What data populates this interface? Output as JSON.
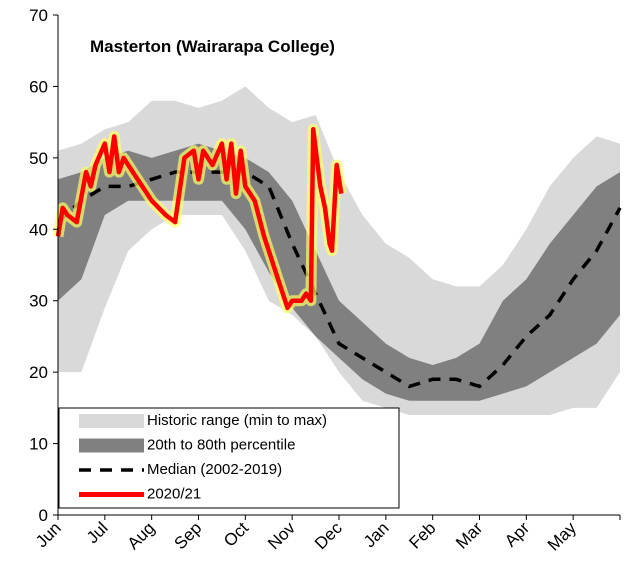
{
  "chart_data": {
    "type": "line",
    "title": "Masterton (Wairarapa College)",
    "x": [
      0,
      0.5,
      1,
      1.5,
      2,
      2.5,
      3,
      3.5,
      4,
      4.5,
      5,
      5.5,
      6,
      6.5,
      7,
      7.5,
      8,
      8.5,
      9,
      9.5,
      10,
      10.5,
      11,
      11.5,
      12
    ],
    "xlim": [
      0,
      12
    ],
    "xticks": [
      {
        "value": 0,
        "label": "Jun"
      },
      {
        "value": 1,
        "label": "Jul"
      },
      {
        "value": 2,
        "label": "Aug"
      },
      {
        "value": 3,
        "label": "Sep"
      },
      {
        "value": 4,
        "label": "Oct"
      },
      {
        "value": 5,
        "label": "Nov"
      },
      {
        "value": 6,
        "label": "Dec"
      },
      {
        "value": 7,
        "label": "Jan"
      },
      {
        "value": 8,
        "label": "Feb"
      },
      {
        "value": 9,
        "label": "Mar"
      },
      {
        "value": 10,
        "label": "Apr"
      },
      {
        "value": 11,
        "label": "May"
      }
    ],
    "ylim": [
      0,
      70
    ],
    "yticks": [
      0,
      10,
      20,
      30,
      40,
      50,
      60,
      70
    ],
    "legend": "lower left",
    "series": [
      {
        "name": "Historic range (min to max)",
        "kind": "band",
        "color": "#d9d9d9",
        "low": [
          20,
          20,
          29,
          37,
          40,
          42,
          42,
          42,
          37,
          30,
          28,
          25,
          20,
          16,
          15,
          14,
          14,
          14,
          14,
          14,
          14,
          14,
          15,
          15,
          20
        ],
        "high": [
          51,
          52,
          54,
          55,
          58,
          58,
          57,
          58,
          60,
          57,
          55,
          56,
          48,
          42,
          38,
          36,
          33,
          32,
          32,
          35,
          40,
          46,
          50,
          53,
          52
        ]
      },
      {
        "name": "20th to 80th percentile",
        "kind": "band",
        "color": "#808080",
        "low": [
          30,
          33,
          42,
          44,
          44,
          44,
          44,
          44,
          40,
          34,
          29,
          25,
          22,
          19,
          17,
          16,
          16,
          16,
          16,
          17,
          18,
          20,
          22,
          24,
          28
        ],
        "high": [
          47,
          48,
          50,
          51,
          50,
          51,
          52,
          51,
          50,
          48,
          44,
          37,
          30,
          27,
          24,
          22,
          21,
          22,
          24,
          30,
          33,
          38,
          42,
          46,
          48
        ]
      },
      {
        "name": "Median (2002-2019)",
        "kind": "dashed",
        "color": "#000000",
        "values": [
          41,
          44,
          46,
          46,
          47,
          48,
          48,
          48,
          48,
          46,
          38,
          31,
          24,
          22,
          20,
          18,
          19,
          19,
          18,
          21,
          25,
          28,
          33,
          37,
          43
        ]
      },
      {
        "name": "2020/21",
        "kind": "glow",
        "color": "#ff0000",
        "glow": "#ffff66",
        "x": [
          0,
          0.1,
          0.2,
          0.4,
          0.6,
          0.7,
          0.8,
          1,
          1.1,
          1.2,
          1.3,
          1.4,
          1.6,
          1.8,
          2,
          2.3,
          2.5,
          2.7,
          2.9,
          3,
          3.1,
          3.3,
          3.5,
          3.6,
          3.7,
          3.8,
          3.9,
          4,
          4.2,
          4.4,
          4.7,
          4.9,
          5,
          5.2,
          5.3,
          5.4,
          5.45,
          5.6,
          5.7,
          5.8,
          5.85,
          5.95,
          6,
          6.05
        ],
        "values": [
          39,
          43,
          42,
          41,
          48,
          46,
          49,
          52,
          48,
          53,
          48,
          50,
          48,
          46,
          44,
          42,
          41,
          50,
          51,
          47,
          51,
          49,
          52,
          47,
          52,
          45,
          51,
          46,
          44,
          39,
          33,
          29,
          30,
          30,
          31,
          30,
          54,
          46,
          43,
          38,
          37,
          49,
          47,
          45
        ]
      }
    ]
  }
}
